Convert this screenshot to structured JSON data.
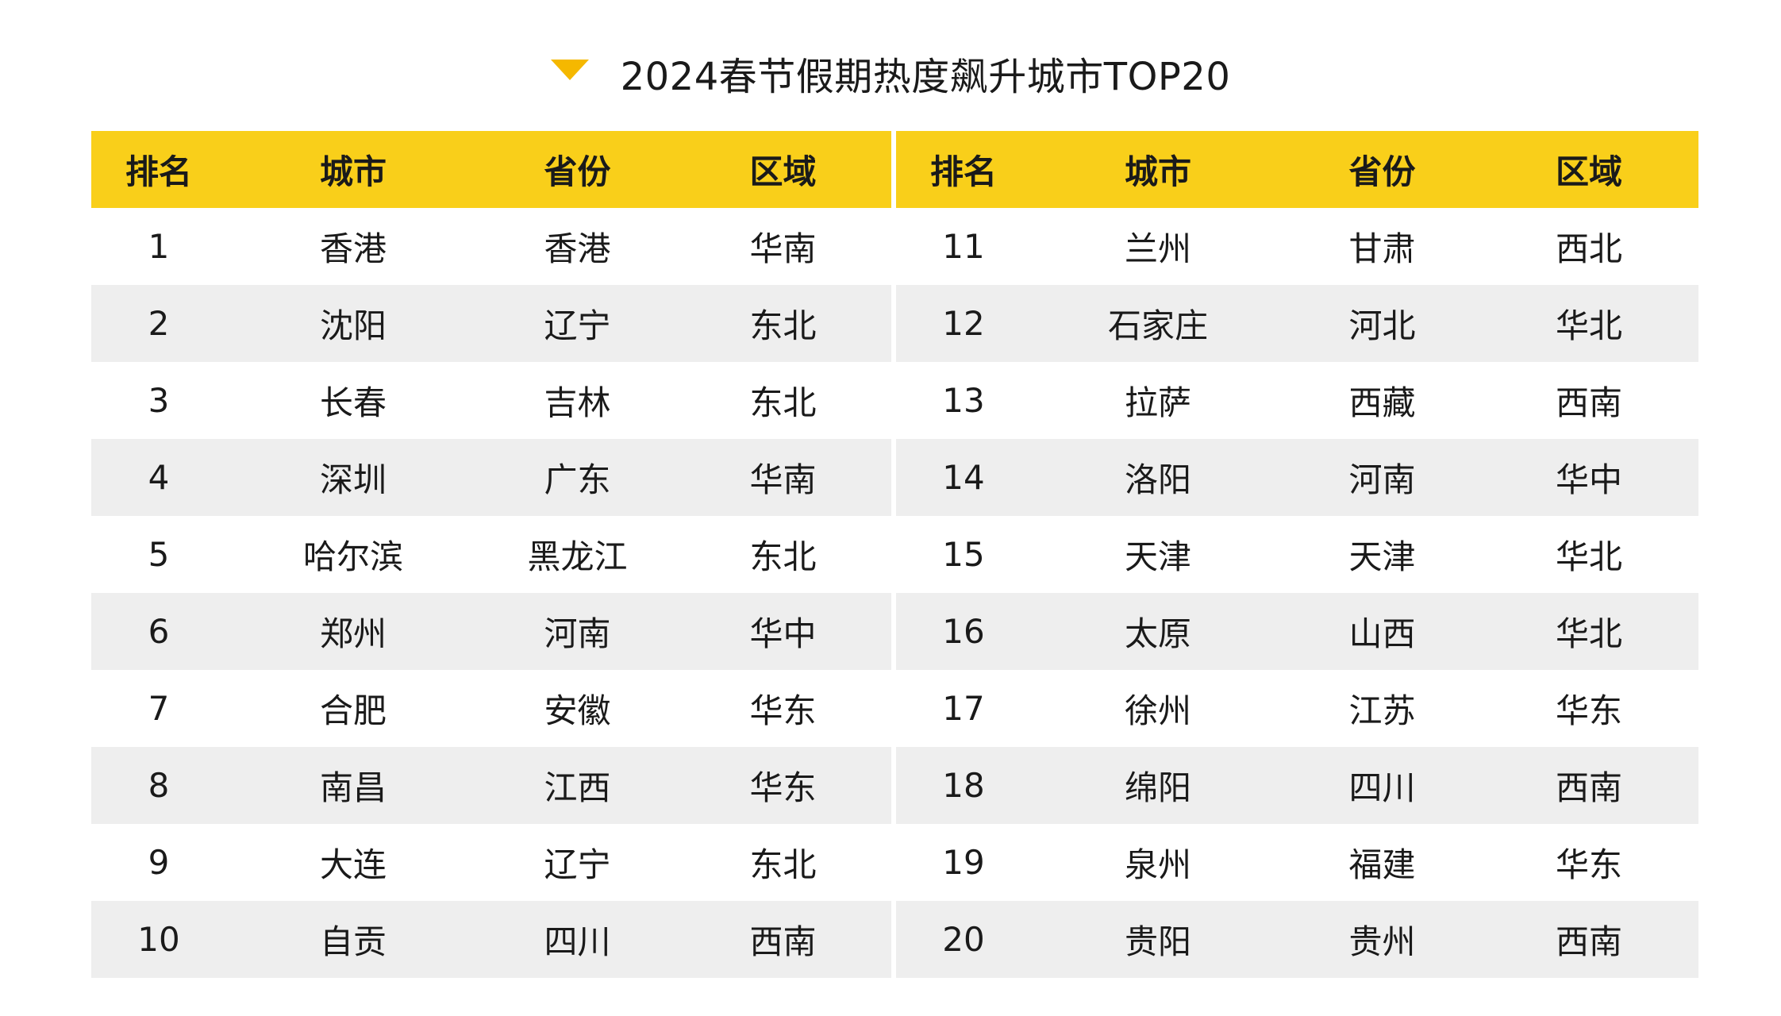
{
  "title": "2024春节假期热度飙升城市TOP20",
  "accent_color": "#f9cf1a",
  "marker_color": "#f5b800",
  "marker_icon": "triangle-down-icon",
  "headers": [
    "排名",
    "城市",
    "省份",
    "区域"
  ],
  "left_rows": [
    {
      "rank": "1",
      "city": "香港",
      "province": "香港",
      "region": "华南"
    },
    {
      "rank": "2",
      "city": "沈阳",
      "province": "辽宁",
      "region": "东北"
    },
    {
      "rank": "3",
      "city": "长春",
      "province": "吉林",
      "region": "东北"
    },
    {
      "rank": "4",
      "city": "深圳",
      "province": "广东",
      "region": "华南"
    },
    {
      "rank": "5",
      "city": "哈尔滨",
      "province": "黑龙江",
      "region": "东北"
    },
    {
      "rank": "6",
      "city": "郑州",
      "province": "河南",
      "region": "华中"
    },
    {
      "rank": "7",
      "city": "合肥",
      "province": "安徽",
      "region": "华东"
    },
    {
      "rank": "8",
      "city": "南昌",
      "province": "江西",
      "region": "华东"
    },
    {
      "rank": "9",
      "city": "大连",
      "province": "辽宁",
      "region": "东北"
    },
    {
      "rank": "10",
      "city": "自贡",
      "province": "四川",
      "region": "西南"
    }
  ],
  "right_rows": [
    {
      "rank": "11",
      "city": "兰州",
      "province": "甘肃",
      "region": "西北"
    },
    {
      "rank": "12",
      "city": "石家庄",
      "province": "河北",
      "region": "华北"
    },
    {
      "rank": "13",
      "city": "拉萨",
      "province": "西藏",
      "region": "西南"
    },
    {
      "rank": "14",
      "city": "洛阳",
      "province": "河南",
      "region": "华中"
    },
    {
      "rank": "15",
      "city": "天津",
      "province": "天津",
      "region": "华北"
    },
    {
      "rank": "16",
      "city": "太原",
      "province": "山西",
      "region": "华北"
    },
    {
      "rank": "17",
      "city": "徐州",
      "province": "江苏",
      "region": "华东"
    },
    {
      "rank": "18",
      "city": "绵阳",
      "province": "四川",
      "region": "西南"
    },
    {
      "rank": "19",
      "city": "泉州",
      "province": "福建",
      "region": "华东"
    },
    {
      "rank": "20",
      "city": "贵阳",
      "province": "贵州",
      "region": "西南"
    }
  ]
}
